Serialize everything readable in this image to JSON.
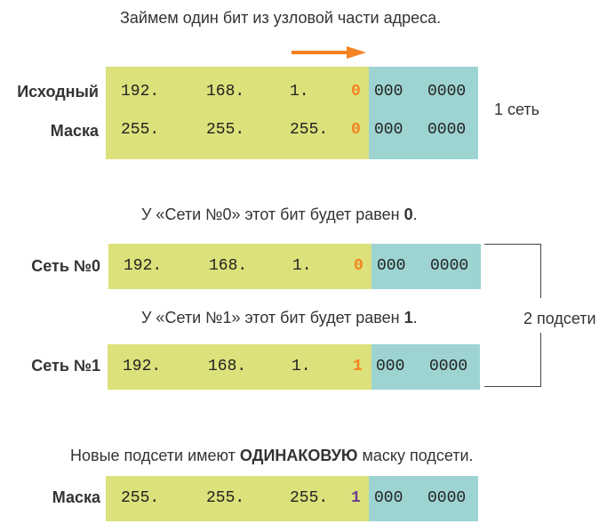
{
  "title": "Займем один бит из узловой части адреса.",
  "one_network": "1 сеть",
  "two_subnets": "2 подсети",
  "caption_net0": {
    "text": "У «Сети №0» этот бит будет равен ",
    "bold": "0",
    "end": "."
  },
  "caption_net1": {
    "text": "У «Сети №1» этот бит будет равен ",
    "bold": "1",
    "end": "."
  },
  "caption_mask": {
    "before": "Новые подсети имеют ",
    "bold": "ОДИНАКОВУЮ",
    "after": " маску подсети."
  },
  "rows": {
    "original": {
      "label": "Исходный",
      "o1": "192.",
      "o2": "168.",
      "o3": "1.",
      "bit": "0",
      "h1": "000",
      "h2": "0000"
    },
    "mask": {
      "label": "Маска",
      "o1": "255.",
      "o2": "255.",
      "o3": "255.",
      "bit": "0",
      "h1": "000",
      "h2": "0000"
    },
    "net0": {
      "label": "Сеть №0",
      "o1": "192.",
      "o2": "168.",
      "o3": "1.",
      "bit": "0",
      "h1": "000",
      "h2": "0000"
    },
    "net1": {
      "label": "Сеть №1",
      "o1": "192.",
      "o2": "168.",
      "o3": "1.",
      "bit": "1",
      "h1": "000",
      "h2": "0000"
    },
    "new_mask": {
      "label": "Маска",
      "o1": "255.",
      "o2": "255.",
      "o3": "255.",
      "bit": "1",
      "h1": "000",
      "h2": "0000"
    }
  },
  "colors": {
    "network": "#dce17b",
    "host": "#9dd4d2",
    "borrowed_bit": "#f58220",
    "mask_bit": "#6b3f8f",
    "arrow": "#f58220"
  },
  "icons": {
    "arrow": "arrow-right-icon"
  }
}
